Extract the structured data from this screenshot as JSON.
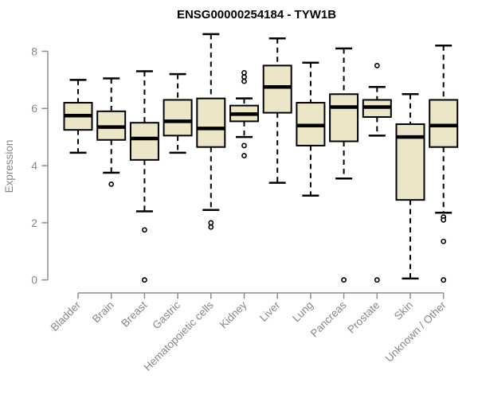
{
  "colors": {
    "box_fill": "#EDE5C7",
    "box_border": "#000000",
    "median": "#000000",
    "whisker": "#000000",
    "axis": "#8D8D8D",
    "axis_text": "#878787",
    "title_text": "#000000",
    "background": "#FFFFFF"
  },
  "chart_data": {
    "type": "boxplot",
    "title": "ENSG00000254184 - TYW1B",
    "xlabel": "",
    "ylabel": "Expression",
    "ylim": [
      0,
      8.7
    ],
    "yticks": [
      0,
      2,
      4,
      6,
      8
    ],
    "grid": false,
    "legend": "none",
    "categories": [
      "Bladder",
      "Brain",
      "Breast",
      "Gastric",
      "Hematopoietic cells",
      "Kidney",
      "Liver",
      "Lung",
      "Pancreas",
      "Prostate",
      "Skin",
      "Unknown / Other"
    ],
    "series": [
      {
        "name": "Bladder",
        "low": 4.45,
        "q1": 5.25,
        "median": 5.75,
        "q3": 6.2,
        "high": 7.0,
        "outliers": []
      },
      {
        "name": "Brain",
        "low": 3.75,
        "q1": 4.9,
        "median": 5.35,
        "q3": 5.9,
        "high": 7.05,
        "outliers": [
          3.35
        ]
      },
      {
        "name": "Breast",
        "low": 2.4,
        "q1": 4.2,
        "median": 4.95,
        "q3": 5.5,
        "high": 7.3,
        "outliers": [
          1.75,
          0.0
        ]
      },
      {
        "name": "Gastric",
        "low": 4.45,
        "q1": 5.05,
        "median": 5.55,
        "q3": 6.3,
        "high": 7.2,
        "outliers": []
      },
      {
        "name": "Hematopoietic cells",
        "low": 2.45,
        "q1": 4.65,
        "median": 5.3,
        "q3": 6.35,
        "high": 8.6,
        "outliers": [
          2.0,
          1.85
        ]
      },
      {
        "name": "Kidney",
        "low": 5.0,
        "q1": 5.55,
        "median": 5.8,
        "q3": 6.1,
        "high": 6.35,
        "outliers": [
          7.25,
          7.1,
          6.95,
          4.7,
          4.35
        ]
      },
      {
        "name": "Liver",
        "low": 3.4,
        "q1": 5.85,
        "median": 6.75,
        "q3": 7.5,
        "high": 8.45,
        "outliers": []
      },
      {
        "name": "Lung",
        "low": 2.95,
        "q1": 4.7,
        "median": 5.4,
        "q3": 6.2,
        "high": 7.6,
        "outliers": []
      },
      {
        "name": "Pancreas",
        "low": 3.55,
        "q1": 4.85,
        "median": 6.05,
        "q3": 6.5,
        "high": 8.1,
        "outliers": [
          0.0
        ]
      },
      {
        "name": "Prostate",
        "low": 5.05,
        "q1": 5.7,
        "median": 6.05,
        "q3": 6.3,
        "high": 6.75,
        "outliers": [
          7.5,
          0.0
        ]
      },
      {
        "name": "Skin",
        "low": 0.05,
        "q1": 2.8,
        "median": 5.0,
        "q3": 5.45,
        "high": 6.5,
        "outliers": []
      },
      {
        "name": "Unknown / Other",
        "low": 2.35,
        "q1": 4.65,
        "median": 5.4,
        "q3": 6.3,
        "high": 8.2,
        "outliers": [
          2.2,
          2.1,
          1.35,
          0.0
        ]
      }
    ]
  }
}
